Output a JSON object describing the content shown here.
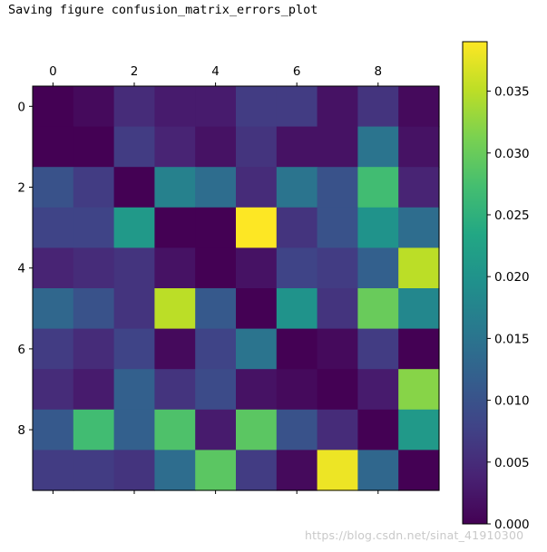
{
  "console_output": "Saving figure confusion_matrix_errors_plot",
  "watermark": "https://blog.csdn.net/sinat_41910300",
  "chart_data": {
    "type": "heatmap",
    "title": "",
    "xlabel": "",
    "ylabel": "",
    "x_ticks": [
      "0",
      "2",
      "4",
      "6",
      "8"
    ],
    "y_ticks": [
      "0",
      "2",
      "4",
      "6",
      "8"
    ],
    "x_tick_values": [
      0,
      2,
      4,
      6,
      8
    ],
    "y_tick_values": [
      0,
      2,
      4,
      6,
      8
    ],
    "x_axis_position": "top",
    "grid": false,
    "colormap": "viridis",
    "colorbar": {
      "position": "right",
      "range": [
        0.0,
        0.039
      ],
      "ticks": [
        0.0,
        0.005,
        0.01,
        0.015,
        0.02,
        0.025,
        0.03,
        0.035
      ],
      "tick_labels": [
        "0.000",
        "0.005",
        "0.010",
        "0.015",
        "0.020",
        "0.025",
        "0.030",
        "0.035"
      ]
    },
    "matrix": [
      [
        0.0,
        0.001,
        0.005,
        0.003,
        0.003,
        0.007,
        0.007,
        0.002,
        0.006,
        0.001
      ],
      [
        0.0,
        0.0,
        0.007,
        0.004,
        0.002,
        0.006,
        0.002,
        0.002,
        0.015,
        0.002
      ],
      [
        0.01,
        0.007,
        0.0,
        0.017,
        0.014,
        0.005,
        0.015,
        0.01,
        0.027,
        0.004
      ],
      [
        0.008,
        0.008,
        0.021,
        0.0,
        0.0,
        0.039,
        0.006,
        0.01,
        0.02,
        0.014
      ],
      [
        0.004,
        0.005,
        0.006,
        0.002,
        0.0,
        0.002,
        0.008,
        0.007,
        0.012,
        0.035
      ],
      [
        0.013,
        0.01,
        0.006,
        0.035,
        0.011,
        0.0,
        0.02,
        0.006,
        0.03,
        0.018
      ],
      [
        0.007,
        0.005,
        0.008,
        0.001,
        0.008,
        0.015,
        0.0,
        0.001,
        0.007,
        0.0
      ],
      [
        0.005,
        0.003,
        0.012,
        0.006,
        0.009,
        0.002,
        0.001,
        0.0,
        0.003,
        0.032
      ],
      [
        0.011,
        0.027,
        0.012,
        0.028,
        0.003,
        0.029,
        0.01,
        0.005,
        0.0,
        0.021
      ],
      [
        0.007,
        0.007,
        0.006,
        0.014,
        0.029,
        0.007,
        0.001,
        0.038,
        0.013,
        0.0
      ]
    ]
  }
}
